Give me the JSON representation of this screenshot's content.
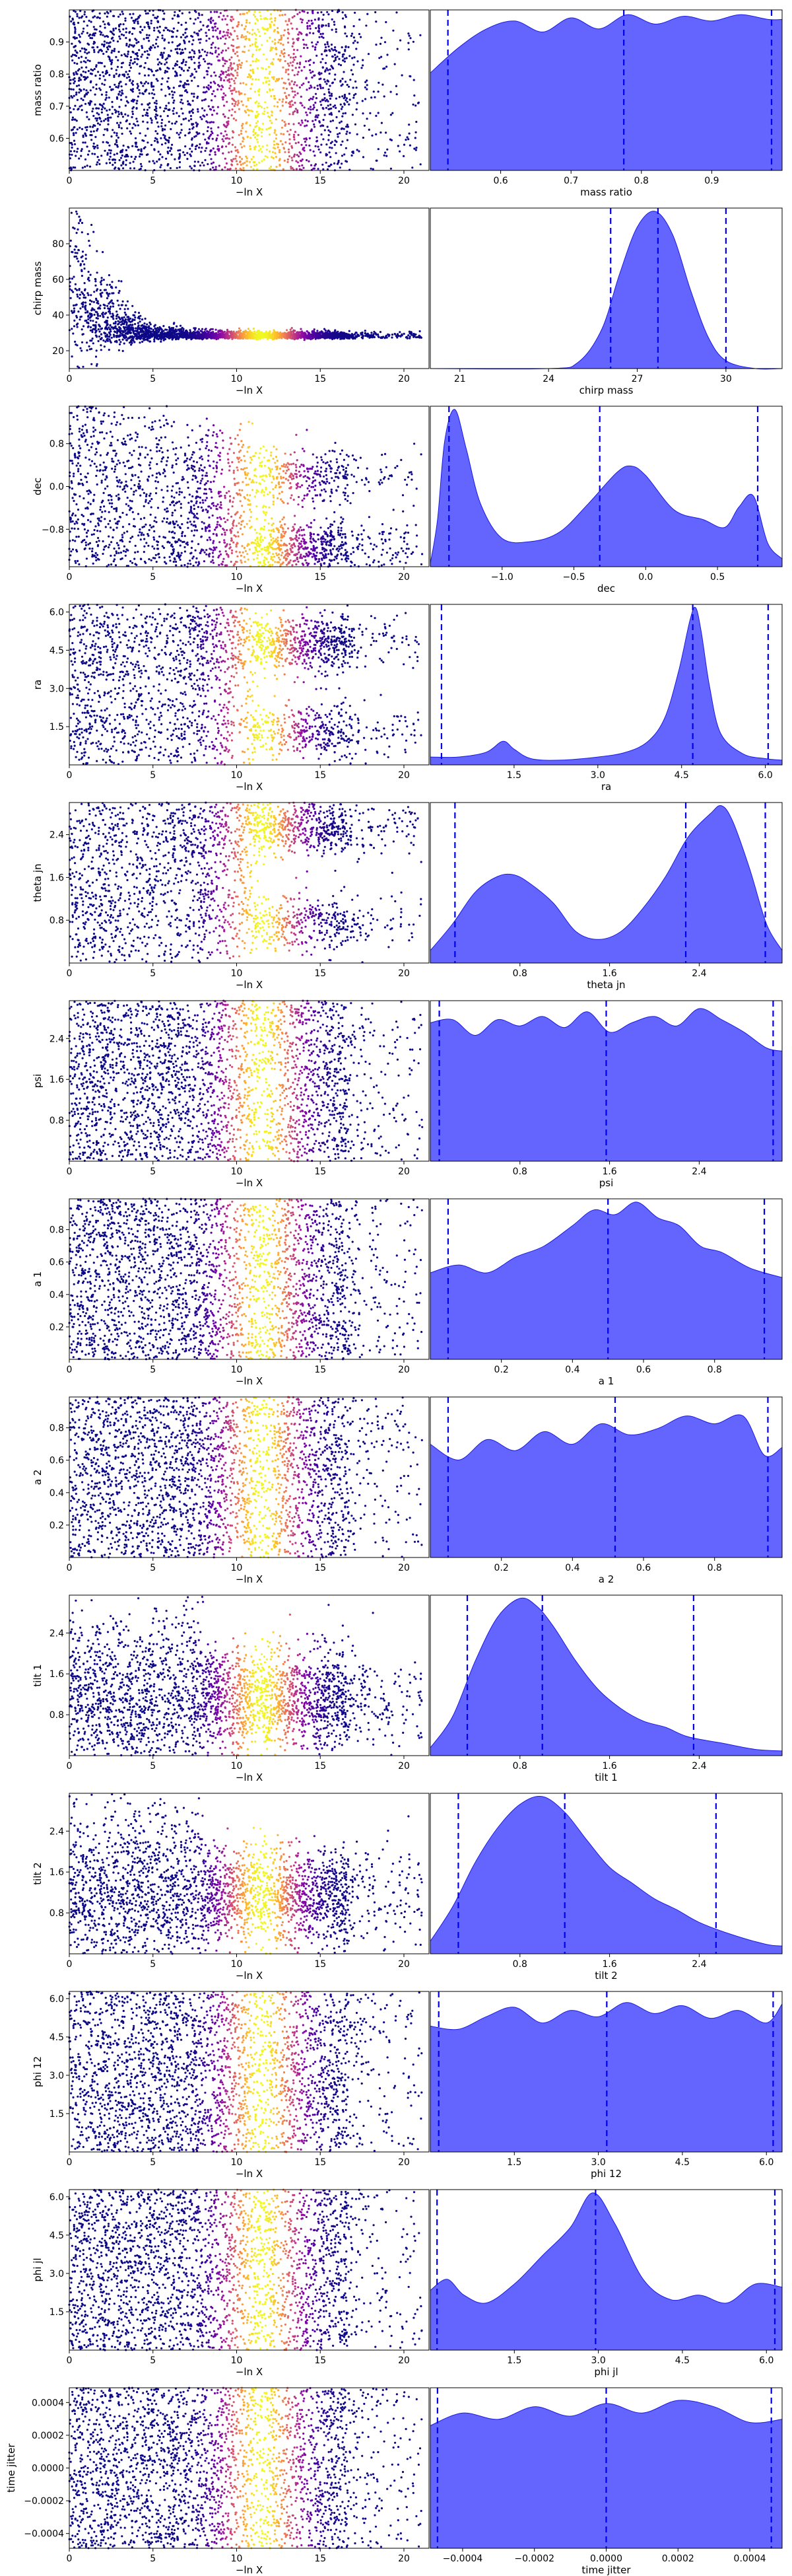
{
  "figure": {
    "scatter_xlabel": "−ln X",
    "colormap": "plasma",
    "kde_fill_color": "#6464ff",
    "kde_edge_color": "#1a1ae6",
    "quantile_line_color": "#0000ee"
  },
  "chart_data": [
    {
      "type": "scatter",
      "parameter": "mass ratio",
      "xlabel": "−ln X",
      "ylabel": "mass ratio",
      "xlim": [
        0,
        21.5
      ],
      "ylim": [
        0.5,
        1.0
      ],
      "x_ticks": [
        0,
        5,
        10,
        15,
        20
      ],
      "y_ticks": [
        0.6,
        0.7,
        0.8,
        0.9
      ],
      "y_tick_labels": [
        "0.6",
        "0.7",
        "0.8",
        "0.9"
      ],
      "points_shape": "uniform",
      "density_peak_x": 11.5
    },
    {
      "type": "area",
      "parameter": "mass ratio",
      "xlabel": "mass ratio",
      "xlim": [
        0.5,
        1.0
      ],
      "x_ticks": [
        0.6,
        0.7,
        0.8,
        0.9
      ],
      "x_tick_labels": [
        "0.6",
        "0.7",
        "0.8",
        "0.9"
      ],
      "kde_x": [
        0.5,
        0.54,
        0.58,
        0.62,
        0.66,
        0.7,
        0.74,
        0.78,
        0.82,
        0.86,
        0.9,
        0.94,
        0.98,
        1.0
      ],
      "kde_y": [
        0.62,
        0.78,
        0.9,
        0.95,
        0.88,
        0.97,
        0.9,
        0.99,
        0.93,
        0.98,
        0.95,
        0.99,
        0.96,
        0.96
      ],
      "quantiles": [
        0.525,
        0.775,
        0.985
      ]
    },
    {
      "type": "scatter",
      "parameter": "chirp mass",
      "xlabel": "−ln X",
      "ylabel": "chirp mass",
      "xlim": [
        0,
        21.5
      ],
      "ylim": [
        10,
        100
      ],
      "x_ticks": [
        0,
        5,
        10,
        15,
        20
      ],
      "y_ticks": [
        20,
        40,
        60,
        80
      ],
      "y_tick_labels": [
        "20",
        "40",
        "60",
        "80"
      ],
      "points_shape": "converging",
      "converged_value": 27.5,
      "density_peak_x": 11.5
    },
    {
      "type": "area",
      "parameter": "chirp mass",
      "xlabel": "chirp mass",
      "xlim": [
        20.0,
        31.9
      ],
      "x_ticks": [
        21,
        24,
        27,
        30
      ],
      "x_tick_labels": [
        "21",
        "24",
        "27",
        "30"
      ],
      "kde_x": [
        20.0,
        24.0,
        25.0,
        25.8,
        26.4,
        27.0,
        27.6,
        28.2,
        28.8,
        29.4,
        30.0,
        31.0,
        31.9
      ],
      "kde_y": [
        0.0,
        0.0,
        0.04,
        0.25,
        0.6,
        0.9,
        1.0,
        0.85,
        0.5,
        0.2,
        0.05,
        0.0,
        0.0
      ],
      "quantiles": [
        26.1,
        27.7,
        30.0
      ]
    },
    {
      "type": "scatter",
      "parameter": "dec",
      "xlabel": "−ln X",
      "ylabel": "dec",
      "xlim": [
        0,
        21.5
      ],
      "ylim": [
        -1.5,
        1.5
      ],
      "x_ticks": [
        0,
        5,
        10,
        15,
        20
      ],
      "y_ticks": [
        -0.8,
        0.0,
        0.8
      ],
      "y_tick_labels": [
        "−0.8",
        "0.0",
        "0.8"
      ],
      "points_shape": "bimodal",
      "modes": [
        -1.15,
        0.2
      ],
      "density_peak_x": 11.5
    },
    {
      "type": "area",
      "parameter": "dec",
      "xlabel": "dec",
      "xlim": [
        -1.5,
        0.95
      ],
      "x_ticks": [
        -1.0,
        -0.5,
        0.0,
        0.5
      ],
      "x_tick_labels": [
        "−1.0",
        "−0.5",
        "0.0",
        "0.5"
      ],
      "kde_x": [
        -1.5,
        -1.45,
        -1.4,
        -1.33,
        -1.25,
        -1.15,
        -1.0,
        -0.8,
        -0.6,
        -0.4,
        -0.2,
        -0.1,
        0.0,
        0.2,
        0.4,
        0.55,
        0.65,
        0.75,
        0.85,
        0.95
      ],
      "kde_y": [
        0.02,
        0.3,
        0.8,
        1.0,
        0.75,
        0.4,
        0.18,
        0.16,
        0.22,
        0.4,
        0.6,
        0.64,
        0.58,
        0.36,
        0.3,
        0.25,
        0.38,
        0.45,
        0.15,
        0.05
      ],
      "quantiles": [
        -1.37,
        -0.32,
        0.78
      ]
    },
    {
      "type": "scatter",
      "parameter": "ra",
      "xlabel": "−ln X",
      "ylabel": "ra",
      "xlim": [
        0,
        21.5
      ],
      "ylim": [
        0.0,
        6.3
      ],
      "x_ticks": [
        0,
        5,
        10,
        15,
        20
      ],
      "y_ticks": [
        1.5,
        3.0,
        4.5,
        6.0
      ],
      "y_tick_labels": [
        "1.5",
        "3.0",
        "4.5",
        "6.0"
      ],
      "points_shape": "bimodal",
      "modes": [
        4.75,
        1.3
      ],
      "density_peak_x": 11.5
    },
    {
      "type": "area",
      "parameter": "ra",
      "xlabel": "ra",
      "xlim": [
        0.0,
        6.3
      ],
      "x_ticks": [
        1.5,
        3.0,
        4.5,
        6.0
      ],
      "x_tick_labels": [
        "1.5",
        "3.0",
        "4.5",
        "6.0"
      ],
      "kde_x": [
        0.0,
        0.5,
        1.0,
        1.3,
        1.5,
        1.8,
        2.3,
        3.0,
        3.5,
        3.9,
        4.2,
        4.45,
        4.65,
        4.75,
        4.85,
        5.0,
        5.2,
        5.6,
        6.0,
        6.3
      ],
      "kde_y": [
        0.05,
        0.05,
        0.08,
        0.15,
        0.1,
        0.04,
        0.03,
        0.05,
        0.08,
        0.15,
        0.3,
        0.6,
        0.92,
        1.0,
        0.85,
        0.5,
        0.2,
        0.07,
        0.04,
        0.03
      ],
      "quantiles": [
        0.2,
        4.7,
        6.05
      ]
    },
    {
      "type": "scatter",
      "parameter": "theta jn",
      "xlabel": "−ln X",
      "ylabel": "theta jn",
      "xlim": [
        0,
        21.5
      ],
      "ylim": [
        0.0,
        3.0
      ],
      "x_ticks": [
        0,
        5,
        10,
        15,
        20
      ],
      "y_ticks": [
        0.8,
        1.6,
        2.4
      ],
      "y_tick_labels": [
        "0.8",
        "1.6",
        "2.4"
      ],
      "points_shape": "bimodal",
      "modes": [
        2.55,
        0.75
      ],
      "density_peak_x": 11.5
    },
    {
      "type": "area",
      "parameter": "theta jn",
      "xlabel": "theta jn",
      "xlim": [
        0.0,
        3.14
      ],
      "x_ticks": [
        0.8,
        1.6,
        2.4
      ],
      "x_tick_labels": [
        "0.8",
        "1.6",
        "2.4"
      ],
      "kde_x": [
        0.0,
        0.2,
        0.4,
        0.6,
        0.75,
        0.9,
        1.1,
        1.3,
        1.5,
        1.7,
        1.9,
        2.1,
        2.3,
        2.5,
        2.6,
        2.7,
        2.85,
        3.0,
        3.14
      ],
      "kde_y": [
        0.08,
        0.25,
        0.45,
        0.55,
        0.56,
        0.5,
        0.38,
        0.2,
        0.15,
        0.2,
        0.35,
        0.55,
        0.8,
        0.95,
        1.0,
        0.9,
        0.6,
        0.25,
        0.08
      ],
      "quantiles": [
        0.22,
        2.28,
        2.99
      ]
    },
    {
      "type": "scatter",
      "parameter": "psi",
      "xlabel": "−ln X",
      "ylabel": "psi",
      "xlim": [
        0,
        21.5
      ],
      "ylim": [
        0.0,
        3.14
      ],
      "x_ticks": [
        0,
        5,
        10,
        15,
        20
      ],
      "y_ticks": [
        0.8,
        1.6,
        2.4
      ],
      "y_tick_labels": [
        "0.8",
        "1.6",
        "2.4"
      ],
      "points_shape": "uniform",
      "density_peak_x": 11.5
    },
    {
      "type": "area",
      "parameter": "psi",
      "xlabel": "psi",
      "xlim": [
        0.0,
        3.14
      ],
      "x_ticks": [
        0.8,
        1.6,
        2.4
      ],
      "x_tick_labels": [
        "0.8",
        "1.6",
        "2.4"
      ],
      "kde_x": [
        0.0,
        0.2,
        0.4,
        0.6,
        0.8,
        1.0,
        1.2,
        1.4,
        1.6,
        1.8,
        2.0,
        2.2,
        2.4,
        2.6,
        2.8,
        3.0,
        3.14
      ],
      "kde_y": [
        0.88,
        0.9,
        0.8,
        0.9,
        0.86,
        0.92,
        0.85,
        0.95,
        0.82,
        0.88,
        0.92,
        0.86,
        0.97,
        0.9,
        0.82,
        0.72,
        0.7
      ],
      "quantiles": [
        0.08,
        1.57,
        3.06
      ]
    },
    {
      "type": "scatter",
      "parameter": "a 1",
      "xlabel": "−ln X",
      "ylabel": "a 1",
      "xlim": [
        0,
        21.5
      ],
      "ylim": [
        0.0,
        0.99
      ],
      "x_ticks": [
        0,
        5,
        10,
        15,
        20
      ],
      "y_ticks": [
        0.2,
        0.4,
        0.6,
        0.8
      ],
      "y_tick_labels": [
        "0.2",
        "0.4",
        "0.6",
        "0.8"
      ],
      "points_shape": "uniform",
      "density_peak_x": 11.5
    },
    {
      "type": "area",
      "parameter": "a 1",
      "xlabel": "a 1",
      "xlim": [
        0.0,
        0.99
      ],
      "x_ticks": [
        0.2,
        0.4,
        0.6,
        0.8
      ],
      "x_tick_labels": [
        "0.2",
        "0.4",
        "0.6",
        "0.8"
      ],
      "kde_x": [
        0.0,
        0.08,
        0.16,
        0.24,
        0.32,
        0.4,
        0.46,
        0.52,
        0.58,
        0.64,
        0.7,
        0.76,
        0.82,
        0.9,
        0.99
      ],
      "kde_y": [
        0.55,
        0.6,
        0.55,
        0.65,
        0.72,
        0.85,
        0.95,
        0.92,
        1.0,
        0.9,
        0.85,
        0.72,
        0.68,
        0.58,
        0.52
      ],
      "quantiles": [
        0.05,
        0.5,
        0.94
      ]
    },
    {
      "type": "scatter",
      "parameter": "a 2",
      "xlabel": "−ln X",
      "ylabel": "a 2",
      "xlim": [
        0,
        21.5
      ],
      "ylim": [
        0.0,
        0.99
      ],
      "x_ticks": [
        0,
        5,
        10,
        15,
        20
      ],
      "y_ticks": [
        0.2,
        0.4,
        0.6,
        0.8
      ],
      "y_tick_labels": [
        "0.2",
        "0.4",
        "0.6",
        "0.8"
      ],
      "points_shape": "uniform",
      "density_peak_x": 11.5
    },
    {
      "type": "area",
      "parameter": "a 2",
      "xlabel": "a 2",
      "xlim": [
        0.0,
        0.99
      ],
      "x_ticks": [
        0.2,
        0.4,
        0.6,
        0.8
      ],
      "x_tick_labels": [
        "0.2",
        "0.4",
        "0.6",
        "0.8"
      ],
      "kde_x": [
        0.0,
        0.08,
        0.16,
        0.24,
        0.32,
        0.4,
        0.48,
        0.56,
        0.64,
        0.72,
        0.8,
        0.88,
        0.94,
        0.99
      ],
      "kde_y": [
        0.72,
        0.62,
        0.75,
        0.68,
        0.8,
        0.72,
        0.85,
        0.78,
        0.82,
        0.9,
        0.85,
        0.9,
        0.65,
        0.7
      ],
      "quantiles": [
        0.05,
        0.52,
        0.95
      ]
    },
    {
      "type": "scatter",
      "parameter": "tilt 1",
      "xlabel": "−ln X",
      "ylabel": "tilt 1",
      "xlim": [
        0,
        21.5
      ],
      "ylim": [
        0.0,
        3.14
      ],
      "x_ticks": [
        0,
        5,
        10,
        15,
        20
      ],
      "y_ticks": [
        0.8,
        1.6,
        2.4
      ],
      "y_tick_labels": [
        "0.8",
        "1.6",
        "2.4"
      ],
      "points_shape": "skewed",
      "density_peak_x": 11.5
    },
    {
      "type": "area",
      "parameter": "tilt 1",
      "xlabel": "tilt 1",
      "xlim": [
        0.0,
        3.14
      ],
      "x_ticks": [
        0.8,
        1.6,
        2.4
      ],
      "x_tick_labels": [
        "0.8",
        "1.6",
        "2.4"
      ],
      "kde_x": [
        0.0,
        0.2,
        0.4,
        0.6,
        0.8,
        0.95,
        1.1,
        1.3,
        1.5,
        1.7,
        1.9,
        2.1,
        2.3,
        2.6,
        2.9,
        3.14
      ],
      "kde_y": [
        0.05,
        0.25,
        0.6,
        0.88,
        1.0,
        0.95,
        0.82,
        0.6,
        0.42,
        0.3,
        0.22,
        0.18,
        0.12,
        0.08,
        0.04,
        0.03
      ],
      "quantiles": [
        0.33,
        1.0,
        2.35
      ]
    },
    {
      "type": "scatter",
      "parameter": "tilt 2",
      "xlabel": "−ln X",
      "ylabel": "tilt 2",
      "xlim": [
        0,
        21.5
      ],
      "ylim": [
        0.0,
        3.14
      ],
      "x_ticks": [
        0,
        5,
        10,
        15,
        20
      ],
      "y_ticks": [
        0.8,
        1.6,
        2.4
      ],
      "y_tick_labels": [
        "0.8",
        "1.6",
        "2.4"
      ],
      "points_shape": "skewed",
      "density_peak_x": 11.5
    },
    {
      "type": "area",
      "parameter": "tilt 2",
      "xlabel": "tilt 2",
      "xlim": [
        0.0,
        3.14
      ],
      "x_ticks": [
        0.8,
        1.6,
        2.4
      ],
      "x_tick_labels": [
        "0.8",
        "1.6",
        "2.4"
      ],
      "kde_x": [
        0.0,
        0.2,
        0.4,
        0.6,
        0.8,
        1.0,
        1.2,
        1.4,
        1.6,
        1.8,
        2.0,
        2.2,
        2.4,
        2.7,
        3.0,
        3.14
      ],
      "kde_y": [
        0.08,
        0.3,
        0.58,
        0.8,
        0.95,
        1.0,
        0.9,
        0.72,
        0.55,
        0.45,
        0.35,
        0.28,
        0.2,
        0.12,
        0.06,
        0.05
      ],
      "quantiles": [
        0.25,
        1.2,
        2.55
      ]
    },
    {
      "type": "scatter",
      "parameter": "phi 12",
      "xlabel": "−ln X",
      "ylabel": "phi 12",
      "xlim": [
        0,
        21.5
      ],
      "ylim": [
        0.0,
        6.28
      ],
      "x_ticks": [
        0,
        5,
        10,
        15,
        20
      ],
      "y_ticks": [
        1.5,
        3.0,
        4.5,
        6.0
      ],
      "y_tick_labels": [
        "1.5",
        "3.0",
        "4.5",
        "6.0"
      ],
      "points_shape": "uniform",
      "density_peak_x": 11.5
    },
    {
      "type": "area",
      "parameter": "phi 12",
      "xlabel": "phi 12",
      "xlim": [
        0.0,
        6.28
      ],
      "x_ticks": [
        1.5,
        3.0,
        4.5,
        6.0
      ],
      "x_tick_labels": [
        "1.5",
        "3.0",
        "4.5",
        "6.0"
      ],
      "kde_x": [
        0.0,
        0.5,
        1.0,
        1.5,
        2.0,
        2.5,
        3.0,
        3.5,
        4.0,
        4.5,
        5.0,
        5.5,
        6.0,
        6.28
      ],
      "kde_y": [
        0.8,
        0.78,
        0.86,
        0.92,
        0.82,
        0.9,
        0.86,
        0.95,
        0.88,
        0.93,
        0.85,
        0.9,
        0.82,
        0.94
      ],
      "quantiles": [
        0.15,
        3.15,
        6.12
      ]
    },
    {
      "type": "scatter",
      "parameter": "phi jl",
      "xlabel": "−ln X",
      "ylabel": "phi jl",
      "xlim": [
        0,
        21.5
      ],
      "ylim": [
        0.0,
        6.28
      ],
      "x_ticks": [
        0,
        5,
        10,
        15,
        20
      ],
      "y_ticks": [
        1.5,
        3.0,
        4.5,
        6.0
      ],
      "y_tick_labels": [
        "1.5",
        "3.0",
        "4.5",
        "6.0"
      ],
      "points_shape": "uniform",
      "density_peak_x": 11.5
    },
    {
      "type": "area",
      "parameter": "phi jl",
      "xlabel": "phi jl",
      "xlim": [
        0.0,
        6.28
      ],
      "x_ticks": [
        1.5,
        3.0,
        4.5,
        6.0
      ],
      "x_tick_labels": [
        "1.5",
        "3.0",
        "4.5",
        "6.0"
      ],
      "kde_x": [
        0.0,
        0.3,
        0.6,
        1.0,
        1.5,
        2.0,
        2.5,
        2.9,
        3.3,
        3.8,
        4.3,
        4.8,
        5.3,
        5.8,
        6.28
      ],
      "kde_y": [
        0.38,
        0.45,
        0.35,
        0.3,
        0.42,
        0.6,
        0.78,
        1.0,
        0.8,
        0.45,
        0.32,
        0.35,
        0.3,
        0.42,
        0.4
      ],
      "quantiles": [
        0.12,
        2.95,
        6.15
      ]
    },
    {
      "type": "scatter",
      "parameter": "time jitter",
      "xlabel": "−ln X",
      "ylabel": "time jitter",
      "xlim": [
        0,
        21.5
      ],
      "ylim": [
        -0.00049,
        0.00049
      ],
      "x_ticks": [
        0,
        5,
        10,
        15,
        20
      ],
      "y_ticks": [
        -0.0004,
        -0.0002,
        0.0,
        0.0002,
        0.0004
      ],
      "y_tick_labels": [
        "−0.0004",
        "−0.0002",
        "0.0000",
        "0.0002",
        "0.0004"
      ],
      "points_shape": "uniform",
      "density_peak_x": 11.5
    },
    {
      "type": "area",
      "parameter": "time jitter",
      "xlabel": "time jitter",
      "xlim": [
        -0.00049,
        0.00049
      ],
      "x_ticks": [
        -0.0004,
        -0.0002,
        0.0,
        0.0002,
        0.0004
      ],
      "x_tick_labels": [
        "−0.0004",
        "−0.0002",
        "0.0000",
        "0.0002",
        "0.0004"
      ],
      "kde_x": [
        -0.00049,
        -0.0004,
        -0.0003,
        -0.0002,
        -0.0001,
        0.0,
        0.0001,
        0.0002,
        0.0003,
        0.0004,
        0.00049
      ],
      "kde_y": [
        0.78,
        0.86,
        0.82,
        0.9,
        0.84,
        0.92,
        0.86,
        0.94,
        0.9,
        0.8,
        0.82
      ],
      "quantiles": [
        -0.00047,
        0.0,
        0.00046
      ]
    }
  ]
}
